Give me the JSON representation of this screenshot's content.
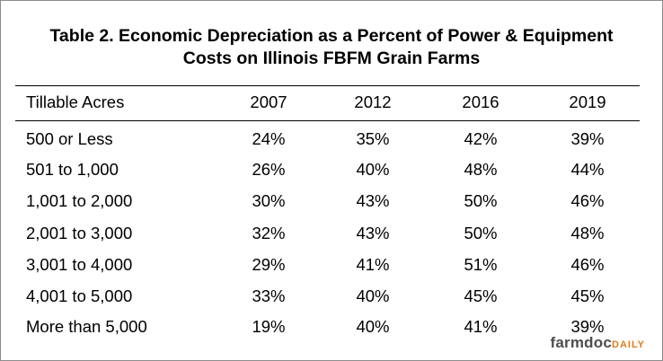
{
  "title": {
    "line1": "Table 2. Economic Depreciation as a Percent of Power & Equipment",
    "line2": "Costs on Illinois FBFM Grain Farms"
  },
  "table": {
    "headers": [
      "Tillable Acres",
      "2007",
      "2012",
      "2016",
      "2019"
    ],
    "rows": [
      [
        "500 or Less",
        "24%",
        "35%",
        "42%",
        "39%"
      ],
      [
        "501 to 1,000",
        "26%",
        "40%",
        "48%",
        "44%"
      ],
      [
        "1,001 to 2,000",
        "30%",
        "43%",
        "50%",
        "46%"
      ],
      [
        "2,001 to 3,000",
        "32%",
        "43%",
        "50%",
        "48%"
      ],
      [
        "3,001 to 4,000",
        "29%",
        "41%",
        "51%",
        "46%"
      ],
      [
        "4,001 to 5,000",
        "33%",
        "40%",
        "45%",
        "45%"
      ],
      [
        "More than 5,000",
        "19%",
        "40%",
        "41%",
        "39%"
      ]
    ]
  },
  "logo": {
    "main": "farmdoc",
    "sub": "DAILY"
  }
}
